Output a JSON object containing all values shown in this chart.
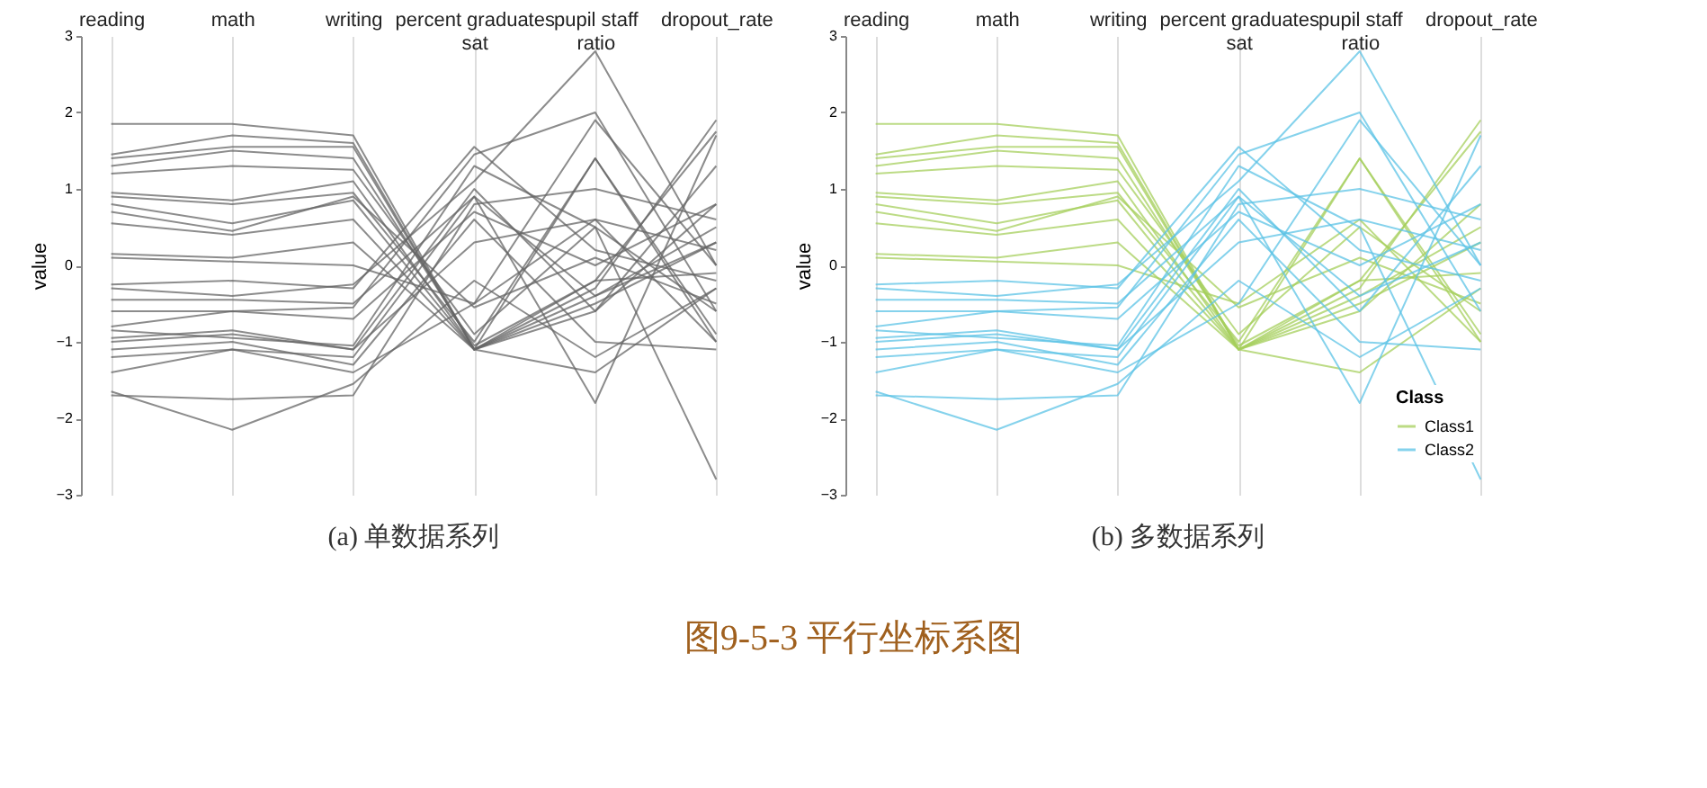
{
  "chart_data": [
    {
      "type": "line",
      "title": "(a) 单数据系列",
      "ylabel": "value",
      "annotations": [
        "图9-5-3 平行坐标系图"
      ],
      "categories": [
        "reading",
        "math",
        "writing",
        "percent graduates sat",
        "pupil staff ratio",
        "dropout_rate"
      ],
      "ylim": [
        -3,
        3
      ],
      "yticks": [
        -3,
        -2,
        -1,
        0,
        1,
        2,
        3
      ],
      "grid": "x",
      "legend": false,
      "series": [
        {
          "color": "#666666",
          "values": [
            1.85,
            1.85,
            1.7,
            -1.1,
            -0.3,
            1.9
          ]
        },
        {
          "color": "#666666",
          "values": [
            1.45,
            1.7,
            1.6,
            -1.1,
            1.4,
            -0.9
          ]
        },
        {
          "color": "#666666",
          "values": [
            1.4,
            1.55,
            1.55,
            -1.1,
            -0.5,
            0.3
          ]
        },
        {
          "color": "#666666",
          "values": [
            1.3,
            1.5,
            1.4,
            -1.05,
            -0.2,
            1.75
          ]
        },
        {
          "color": "#666666",
          "values": [
            1.2,
            1.3,
            1.25,
            -0.9,
            0.5,
            -0.6
          ]
        },
        {
          "color": "#666666",
          "values": [
            0.95,
            0.85,
            1.1,
            -1.1,
            -0.6,
            0.8
          ]
        },
        {
          "color": "#666666",
          "values": [
            0.9,
            0.8,
            0.95,
            -1.0,
            1.4,
            -1.0
          ]
        },
        {
          "color": "#666666",
          "values": [
            0.8,
            0.55,
            0.85,
            -1.1,
            -0.2,
            -0.1
          ]
        },
        {
          "color": "#666666",
          "values": [
            0.7,
            0.45,
            0.9,
            -0.55,
            0.1,
            -0.5
          ]
        },
        {
          "color": "#666666",
          "values": [
            0.55,
            0.4,
            0.6,
            -1.1,
            -0.4,
            0.5
          ]
        },
        {
          "color": "#666666",
          "values": [
            0.15,
            0.1,
            0.3,
            -1.1,
            -1.4,
            -0.3
          ]
        },
        {
          "color": "#666666",
          "values": [
            0.1,
            0.05,
            0.0,
            -0.5,
            0.6,
            -1.0
          ]
        },
        {
          "color": "#666666",
          "values": [
            -0.25,
            -0.2,
            -0.3,
            1.55,
            0.2,
            -0.2
          ]
        },
        {
          "color": "#666666",
          "values": [
            -0.3,
            -0.4,
            -0.25,
            1.1,
            2.8,
            0.0
          ]
        },
        {
          "color": "#666666",
          "values": [
            -0.45,
            -0.45,
            -0.5,
            0.9,
            -1.8,
            1.7
          ]
        },
        {
          "color": "#666666",
          "values": [
            -0.6,
            -0.6,
            -0.55,
            1.45,
            2.0,
            -0.6
          ]
        },
        {
          "color": "#666666",
          "values": [
            -0.8,
            -0.6,
            -0.7,
            0.7,
            0.0,
            0.8
          ]
        },
        {
          "color": "#666666",
          "values": [
            -0.85,
            -0.95,
            -1.05,
            1.3,
            0.5,
            -2.8
          ]
        },
        {
          "color": "#666666",
          "values": [
            -0.95,
            -0.85,
            -1.1,
            0.3,
            0.6,
            0.2
          ]
        },
        {
          "color": "#666666",
          "values": [
            -1.0,
            -0.9,
            -1.1,
            1.0,
            -0.6,
            1.3
          ]
        },
        {
          "color": "#666666",
          "values": [
            -1.1,
            -1.0,
            -1.3,
            0.6,
            -1.0,
            -1.1
          ]
        },
        {
          "color": "#666666",
          "values": [
            -1.2,
            -1.1,
            -1.4,
            -0.5,
            1.9,
            0.0
          ]
        },
        {
          "color": "#666666",
          "values": [
            -1.4,
            -1.1,
            -1.2,
            0.9,
            -0.4,
            0.3
          ]
        },
        {
          "color": "#666666",
          "values": [
            -1.65,
            -2.15,
            -1.55,
            -0.2,
            -1.2,
            -0.3
          ]
        },
        {
          "color": "#666666",
          "values": [
            -1.7,
            -1.75,
            -1.7,
            0.8,
            1.0,
            0.6
          ]
        }
      ]
    },
    {
      "type": "line",
      "title": "(b) 多数据系列",
      "ylabel": "value",
      "legend_title": "Class",
      "categories": [
        "reading",
        "math",
        "writing",
        "percent graduates sat",
        "pupil staff ratio",
        "dropout_rate"
      ],
      "ylim": [
        -3,
        3
      ],
      "yticks": [
        -3,
        -2,
        -1,
        0,
        1,
        2,
        3
      ],
      "grid": "x",
      "legend": "bottom right",
      "series": [
        {
          "name": "Class1",
          "color": "#a6cf5c",
          "values": [
            1.85,
            1.85,
            1.7,
            -1.1,
            -0.3,
            1.9
          ]
        },
        {
          "color": "#a6cf5c",
          "values": [
            1.45,
            1.7,
            1.6,
            -1.1,
            1.4,
            -0.9
          ]
        },
        {
          "color": "#a6cf5c",
          "values": [
            1.4,
            1.55,
            1.55,
            -1.1,
            -0.5,
            0.3
          ]
        },
        {
          "color": "#a6cf5c",
          "values": [
            1.3,
            1.5,
            1.4,
            -1.05,
            -0.2,
            1.75
          ]
        },
        {
          "color": "#a6cf5c",
          "values": [
            1.2,
            1.3,
            1.25,
            -0.9,
            0.5,
            -0.6
          ]
        },
        {
          "color": "#a6cf5c",
          "values": [
            0.95,
            0.85,
            1.1,
            -1.1,
            -0.6,
            0.8
          ]
        },
        {
          "color": "#a6cf5c",
          "values": [
            0.9,
            0.8,
            0.95,
            -1.0,
            1.4,
            -1.0
          ]
        },
        {
          "color": "#a6cf5c",
          "values": [
            0.8,
            0.55,
            0.85,
            -1.1,
            -0.2,
            -0.1
          ]
        },
        {
          "color": "#a6cf5c",
          "values": [
            0.7,
            0.45,
            0.9,
            -0.55,
            0.1,
            -0.5
          ]
        },
        {
          "color": "#a6cf5c",
          "values": [
            0.55,
            0.4,
            0.6,
            -1.1,
            -0.4,
            0.5
          ]
        },
        {
          "color": "#a6cf5c",
          "values": [
            0.15,
            0.1,
            0.3,
            -1.1,
            -1.4,
            -0.3
          ]
        },
        {
          "color": "#a6cf5c",
          "values": [
            0.1,
            0.05,
            0.0,
            -0.5,
            0.6,
            -1.0
          ]
        },
        {
          "name": "Class2",
          "color": "#5cc3e6",
          "values": [
            -0.25,
            -0.2,
            -0.3,
            1.55,
            0.2,
            -0.2
          ]
        },
        {
          "color": "#5cc3e6",
          "values": [
            -0.3,
            -0.4,
            -0.25,
            1.1,
            2.8,
            0.0
          ]
        },
        {
          "color": "#5cc3e6",
          "values": [
            -0.45,
            -0.45,
            -0.5,
            0.9,
            -1.8,
            1.7
          ]
        },
        {
          "color": "#5cc3e6",
          "values": [
            -0.6,
            -0.6,
            -0.55,
            1.45,
            2.0,
            -0.6
          ]
        },
        {
          "color": "#5cc3e6",
          "values": [
            -0.8,
            -0.6,
            -0.7,
            0.7,
            0.0,
            0.8
          ]
        },
        {
          "color": "#5cc3e6",
          "values": [
            -0.85,
            -0.95,
            -1.05,
            1.3,
            0.5,
            -2.8
          ]
        },
        {
          "color": "#5cc3e6",
          "values": [
            -0.95,
            -0.85,
            -1.1,
            0.3,
            0.6,
            0.2
          ]
        },
        {
          "color": "#5cc3e6",
          "values": [
            -1.0,
            -0.9,
            -1.1,
            1.0,
            -0.6,
            1.3
          ]
        },
        {
          "color": "#5cc3e6",
          "values": [
            -1.1,
            -1.0,
            -1.3,
            0.6,
            -1.0,
            -1.1
          ]
        },
        {
          "color": "#5cc3e6",
          "values": [
            -1.2,
            -1.1,
            -1.4,
            -0.5,
            1.9,
            0.0
          ]
        },
        {
          "color": "#5cc3e6",
          "values": [
            -1.4,
            -1.1,
            -1.2,
            0.9,
            -0.4,
            0.3
          ]
        },
        {
          "color": "#5cc3e6",
          "values": [
            -1.65,
            -2.15,
            -1.55,
            -0.2,
            -1.2,
            -0.3
          ]
        },
        {
          "color": "#5cc3e6",
          "values": [
            -1.7,
            -1.75,
            -1.7,
            0.8,
            1.0,
            0.6
          ]
        }
      ]
    }
  ]
}
